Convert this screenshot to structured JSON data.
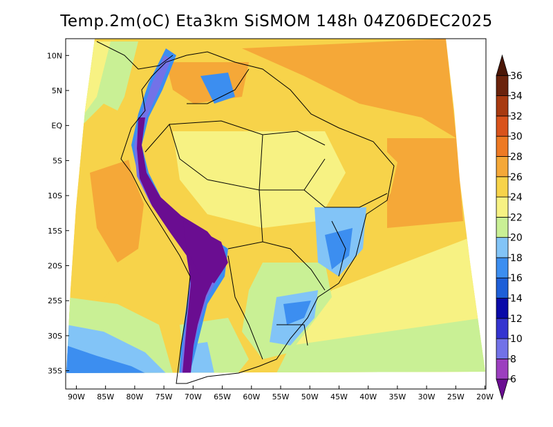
{
  "title": "Temp.2m(oC) Eta3km SiSMOM 148h 04Z06DEC2025",
  "map": {
    "lat_labels": [
      {
        "label": "10N",
        "lat": 10
      },
      {
        "label": "5N",
        "lat": 5
      },
      {
        "label": "EQ",
        "lat": 0
      },
      {
        "label": "5S",
        "lat": -5
      },
      {
        "label": "10S",
        "lat": -10
      },
      {
        "label": "15S",
        "lat": -15
      },
      {
        "label": "20S",
        "lat": -20
      },
      {
        "label": "25S",
        "lat": -25
      },
      {
        "label": "30S",
        "lat": -30
      },
      {
        "label": "35S",
        "lat": -35
      }
    ],
    "lon_labels": [
      {
        "label": "90W",
        "lon": -90
      },
      {
        "label": "85W",
        "lon": -85
      },
      {
        "label": "80W",
        "lon": -80
      },
      {
        "label": "75W",
        "lon": -75
      },
      {
        "label": "70W",
        "lon": -70
      },
      {
        "label": "65W",
        "lon": -65
      },
      {
        "label": "60W",
        "lon": -60
      },
      {
        "label": "55W",
        "lon": -55
      },
      {
        "label": "50W",
        "lon": -50
      },
      {
        "label": "45W",
        "lon": -45
      },
      {
        "label": "40W",
        "lon": -40
      },
      {
        "label": "35W",
        "lon": -35
      },
      {
        "label": "30W",
        "lon": -30
      },
      {
        "label": "25W",
        "lon": -25
      },
      {
        "label": "20W",
        "lon": -20
      }
    ],
    "lon_range": [
      -91,
      -19
    ],
    "lat_range": [
      -38,
      12
    ]
  },
  "colorbar": {
    "levels": [
      "6",
      "8",
      "10",
      "12",
      "14",
      "16",
      "18",
      "20",
      "22",
      "24",
      "26",
      "28",
      "30",
      "32",
      "34",
      "36"
    ],
    "colors": [
      "#6a0d91",
      "#9c3fbf",
      "#7272e8",
      "#3434d0",
      "#0a0aa8",
      "#1e5fd8",
      "#3c8ef0",
      "#82c4f7",
      "#c9f095",
      "#f7f283",
      "#f7d34a",
      "#f5a838",
      "#ee7a24",
      "#d9531c",
      "#a83a10",
      "#6b230c",
      "#4a1606"
    ],
    "unit": "oC"
  }
}
